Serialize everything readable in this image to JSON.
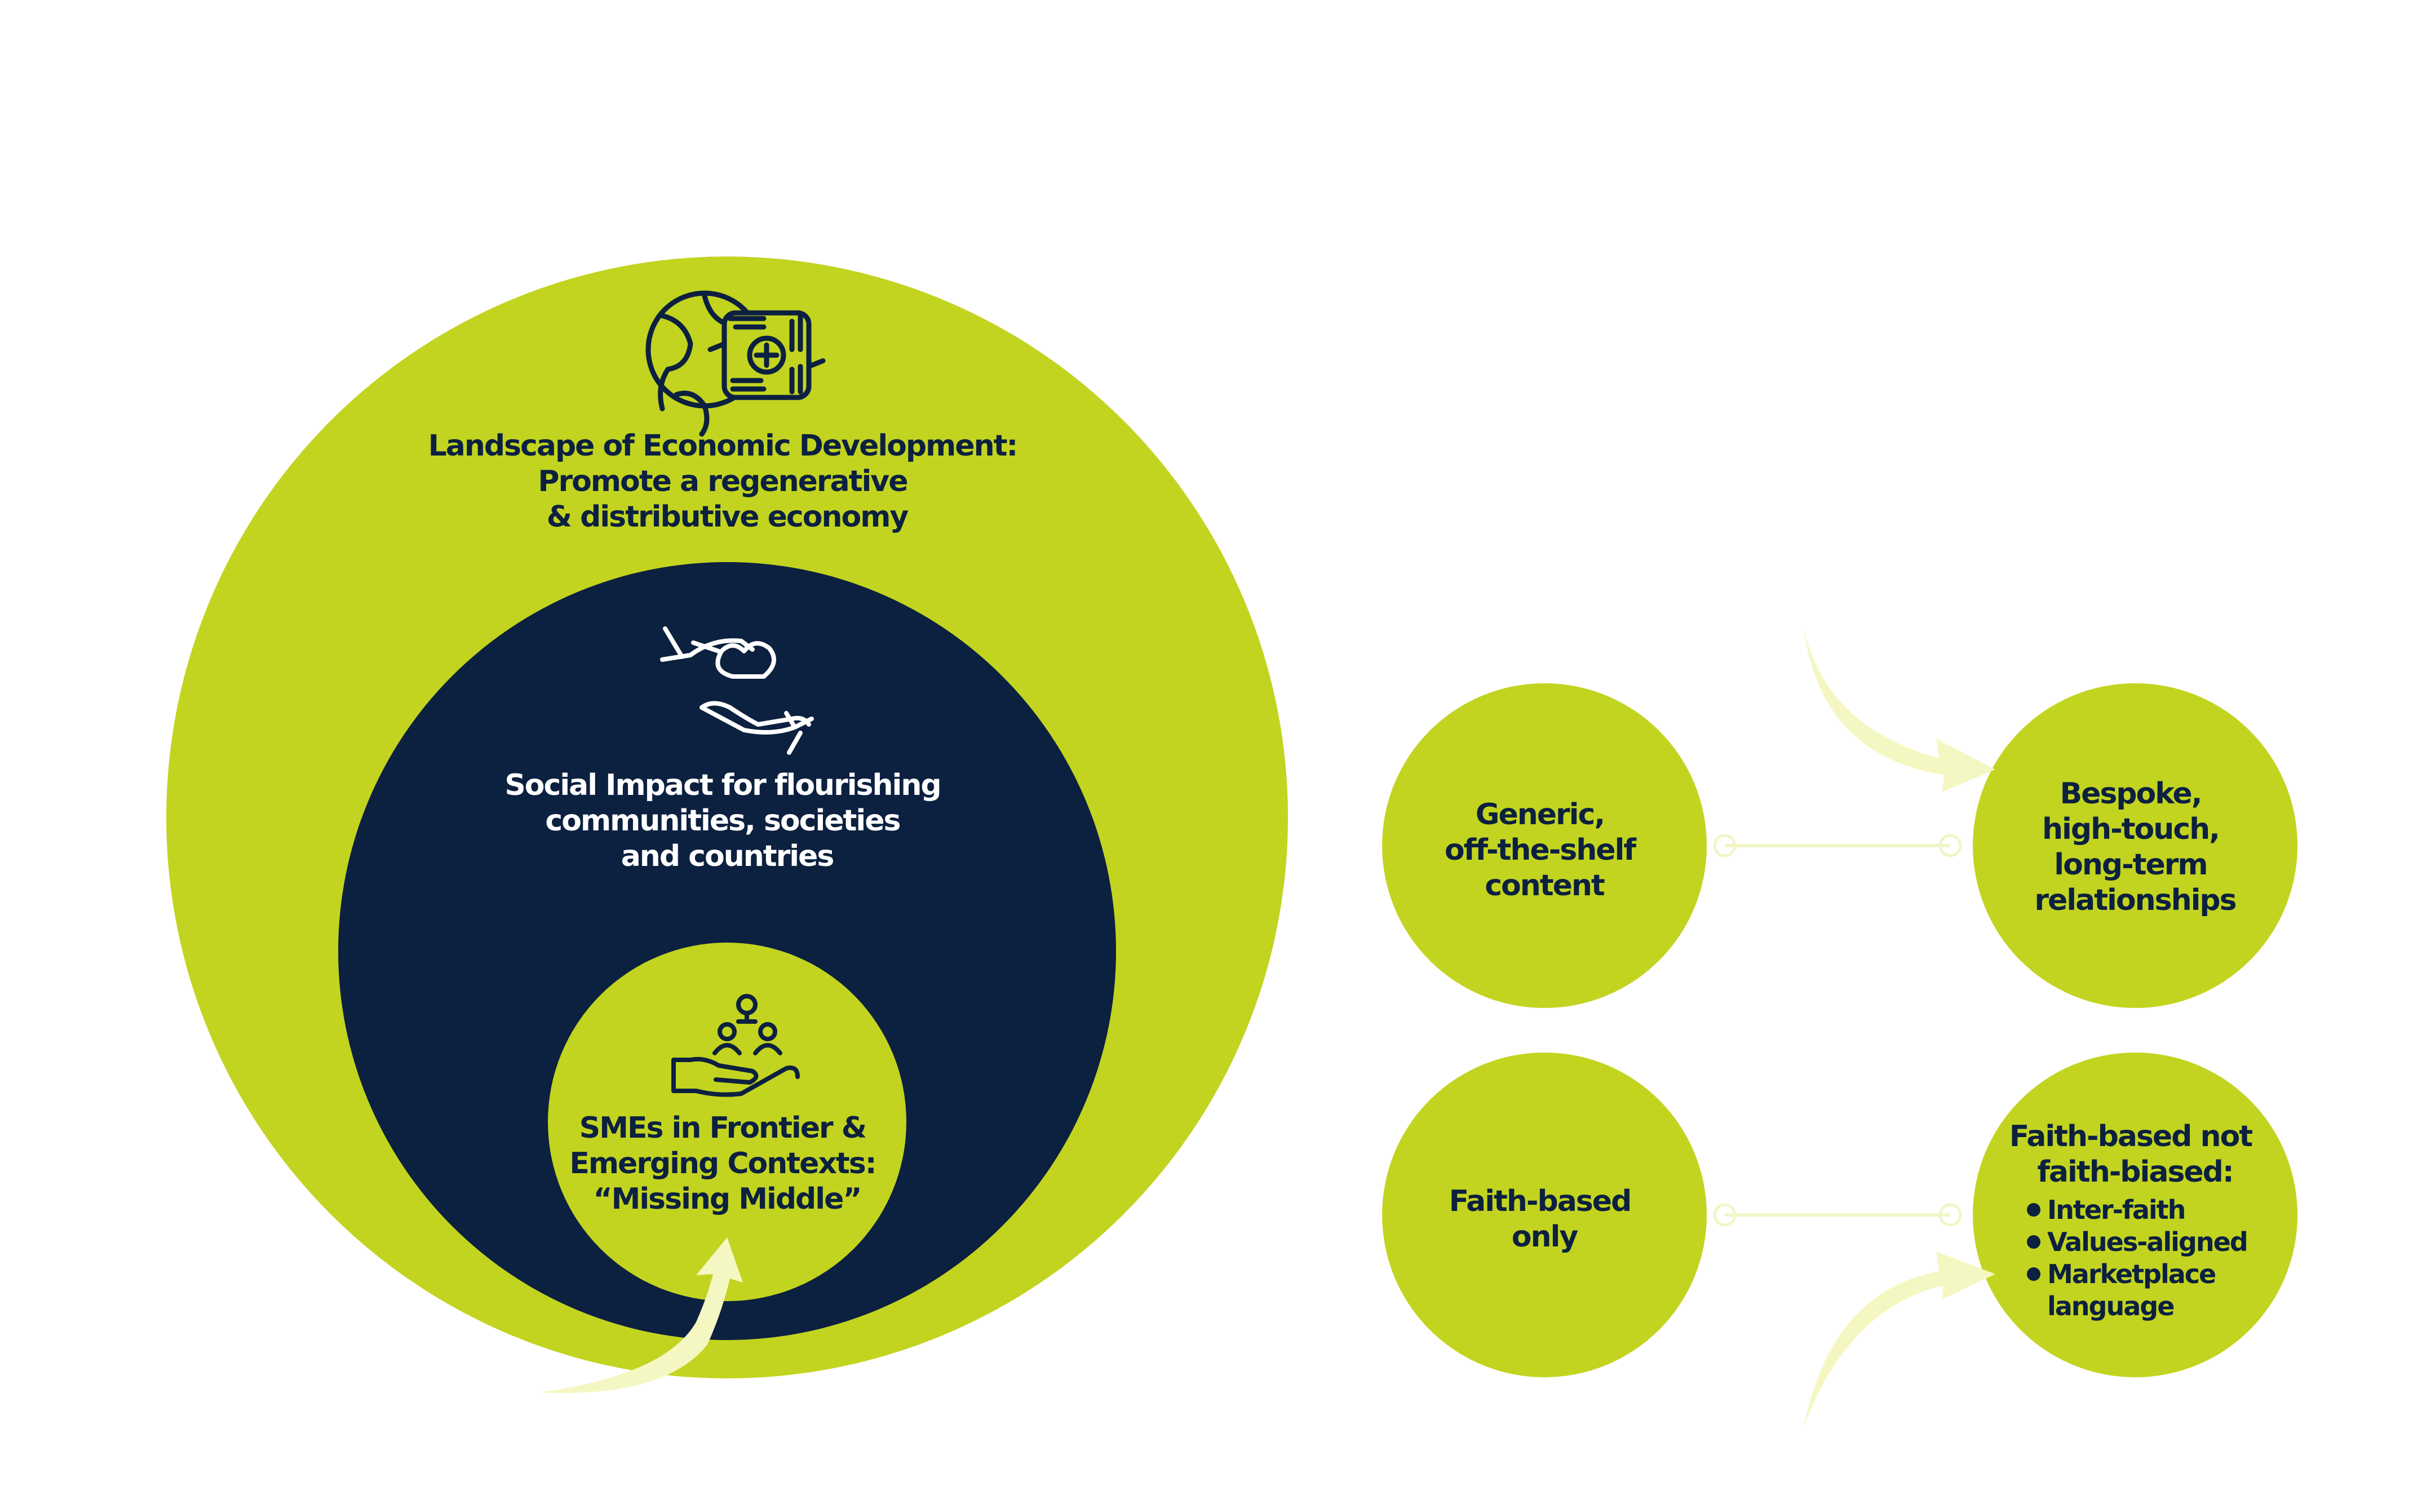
{
  "colors": {
    "lime": "#c2d41f",
    "navy": "#0c2040",
    "text_dark": "#0c2040",
    "text_light": "#ffffff",
    "arrow": "#f5f7c2",
    "connector": "#f2f5c6"
  },
  "diagram": {
    "outer": {
      "icon": "globe-hands-icon",
      "lines": [
        "Landscape of Economic Development:",
        "Promote a regenerative",
        "& distributive economy"
      ]
    },
    "middle": {
      "icon": "hands-giving-heart-icon",
      "lines": [
        "Social Impact for flourishing",
        "communities, societies",
        "and countries"
      ]
    },
    "inner": {
      "icon": "hand-holding-people-icon",
      "lines": [
        "SMEs in Frontier &",
        "Emerging Contexts:",
        "“Missing Middle”"
      ]
    },
    "shift_rows": [
      {
        "from": {
          "lines": [
            "Generic,",
            "off-the-shelf",
            "content"
          ]
        },
        "to": {
          "lines": [
            "Bespoke,",
            "high-touch,",
            "long-term",
            "relationships"
          ]
        }
      },
      {
        "from": {
          "lines": [
            "Faith-based",
            "only"
          ]
        },
        "to": {
          "heading": [
            "Faith-based not",
            "faith-biased:"
          ],
          "bullets": [
            "Inter-faith",
            "Values-aligned",
            "Marketplace",
            "language"
          ]
        }
      }
    ]
  }
}
